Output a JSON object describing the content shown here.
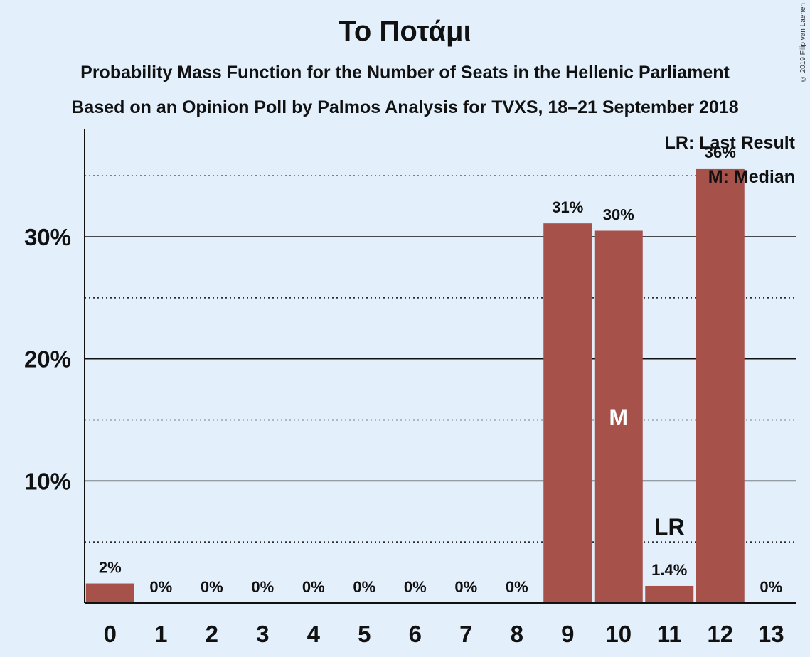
{
  "chart_data": {
    "type": "bar",
    "title": "Το Ποτάμι",
    "subtitle_1": "Probability Mass Function for the Number of Seats in the Hellenic Parliament",
    "subtitle_2": "Based on an Opinion Poll by Palmos Analysis for TVXS, 18–21 September 2018",
    "categories": [
      "0",
      "1",
      "2",
      "3",
      "4",
      "5",
      "6",
      "7",
      "8",
      "9",
      "10",
      "11",
      "12",
      "13"
    ],
    "values": [
      1.6,
      0,
      0,
      0,
      0,
      0,
      0,
      0,
      0,
      31.1,
      30.5,
      1.4,
      35.6,
      0
    ],
    "data_labels": [
      "2%",
      "0%",
      "0%",
      "0%",
      "0%",
      "0%",
      "0%",
      "0%",
      "0%",
      "31%",
      "30%",
      "1.4%",
      "36%",
      "0%"
    ],
    "ylim": [
      0,
      38.8
    ],
    "y_ticks": [
      {
        "value": 10,
        "label": "10%"
      },
      {
        "value": 20,
        "label": "20%"
      },
      {
        "value": 30,
        "label": "30%"
      }
    ],
    "minor_gridlines": [
      5,
      15,
      25,
      35
    ],
    "bar_color": "#a65149",
    "median_index": 10,
    "median_marker": "M",
    "last_result_index": 11,
    "last_result_marker": "LR",
    "legend": [
      "LR: Last Result",
      "M: Median"
    ],
    "legend_position": "top-right",
    "copyright": "© 2019 Filip van Laenen"
  }
}
